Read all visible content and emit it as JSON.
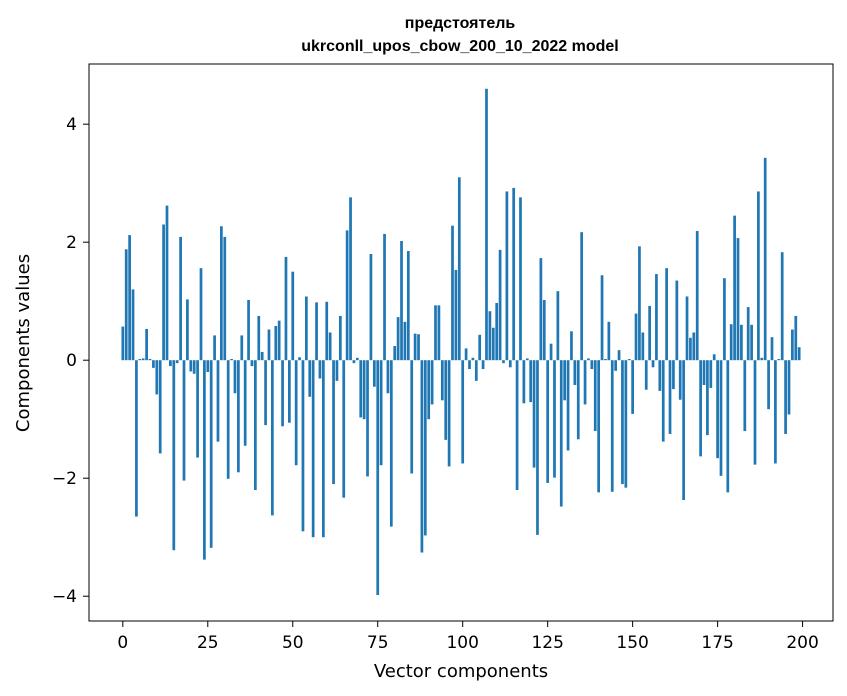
{
  "chart_data": {
    "type": "bar",
    "title": [
      "предстоятель",
      "ukrconll_upos_cbow_200_10_2022 model"
    ],
    "xlabel": "Vector components",
    "ylabel": "Components values",
    "xlim": [
      -9.95,
      208.95
    ],
    "ylim": [
      -4.42,
      5.02
    ],
    "x_ticks": [
      0,
      25,
      50,
      75,
      100,
      125,
      150,
      175,
      200
    ],
    "y_ticks": [
      -4,
      -2,
      0,
      2,
      4
    ],
    "y_tick_labels": [
      "−4",
      "−2",
      "0",
      "2",
      "4"
    ],
    "bar_color": "#1f77b4",
    "grid": false,
    "values": [
      0.57,
      1.88,
      2.12,
      1.2,
      -2.65,
      0.02,
      0.03,
      0.53,
      0.02,
      -0.13,
      -0.58,
      -1.58,
      2.3,
      2.62,
      -0.1,
      -3.22,
      -0.05,
      2.09,
      -2.04,
      1.03,
      -0.19,
      -0.23,
      -1.65,
      1.56,
      -3.38,
      -0.2,
      -3.18,
      0.42,
      -1.38,
      2.27,
      2.09,
      -2.01,
      0.02,
      -0.56,
      -1.9,
      0.42,
      -1.45,
      1.02,
      -0.1,
      -2.2,
      0.75,
      0.14,
      -1.1,
      0.52,
      -2.63,
      0.58,
      0.67,
      -1.12,
      1.75,
      -1.06,
      1.5,
      -1.78,
      0.05,
      -2.9,
      1.08,
      -0.62,
      -3.0,
      0.98,
      -0.31,
      -3.0,
      0.99,
      0.47,
      -2.1,
      -0.35,
      0.75,
      -2.33,
      2.2,
      2.76,
      -0.05,
      0.04,
      -0.97,
      -1.0,
      -1.97,
      1.8,
      -0.45,
      -3.98,
      -1.78,
      2.14,
      -0.56,
      -2.82,
      0.24,
      0.73,
      2.02,
      0.65,
      1.85,
      -1.92,
      0.45,
      0.44,
      -3.26,
      -2.97,
      -1.0,
      -0.75,
      0.93,
      0.93,
      -0.68,
      -1.35,
      -1.8,
      2.28,
      1.53,
      3.1,
      -1.75,
      0.2,
      -0.15,
      0.04,
      -0.35,
      0.43,
      -0.15,
      4.6,
      0.83,
      0.55,
      0.97,
      1.87,
      -0.05,
      2.86,
      -0.12,
      2.92,
      -2.2,
      2.76,
      -0.73,
      0.03,
      -0.71,
      -1.82,
      -2.96,
      1.73,
      1.02,
      -2.08,
      0.28,
      -1.99,
      1.17,
      -2.48,
      -0.68,
      -1.53,
      0.49,
      -0.42,
      -1.34,
      2.17,
      -0.75,
      0.03,
      -0.15,
      -1.2,
      -2.24,
      1.44,
      0.02,
      0.65,
      -2.23,
      -0.18,
      0.17,
      -2.1,
      -2.16,
      0.02,
      -0.91,
      0.79,
      1.93,
      0.47,
      -0.5,
      0.92,
      -0.12,
      1.46,
      -0.52,
      -1.38,
      1.56,
      -1.25,
      -0.49,
      1.35,
      -0.67,
      -2.37,
      1.08,
      0.38,
      0.47,
      2.19,
      -1.63,
      -0.42,
      -1.27,
      -0.47,
      0.1,
      -1.66,
      -1.96,
      1.39,
      -2.24,
      0.61,
      2.45,
      2.07,
      0.6,
      -1.2,
      0.9,
      0.6,
      -1.77,
      2.86,
      0.04,
      3.43,
      -0.83,
      0.39,
      -1.75,
      0.02,
      1.83,
      -1.25,
      -0.92,
      0.52,
      0.75,
      0.22
    ]
  }
}
